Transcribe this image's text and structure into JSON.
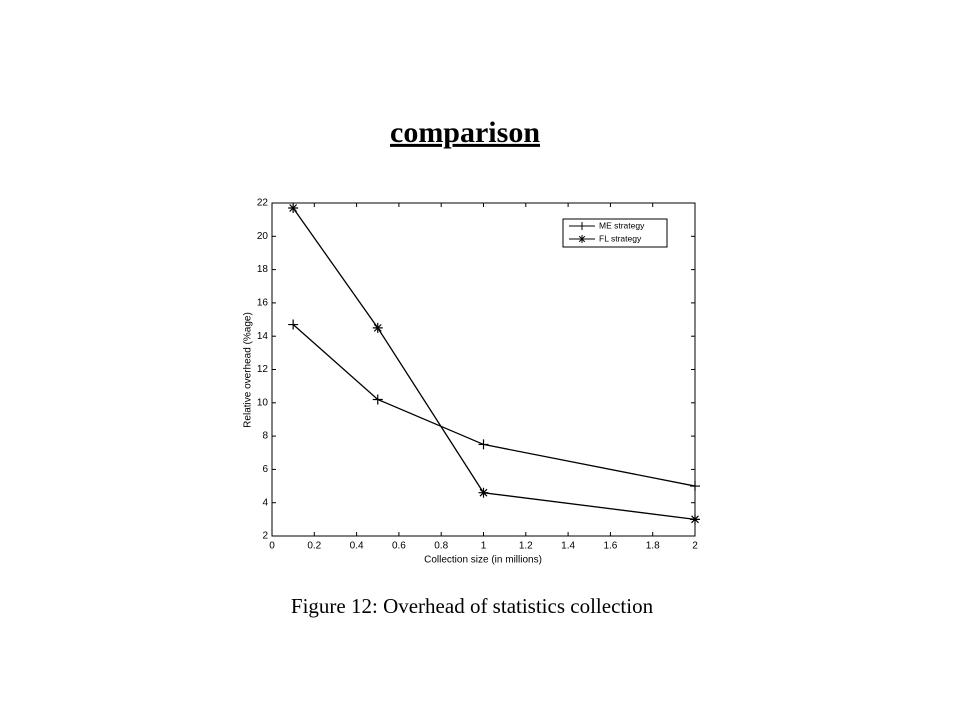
{
  "slide": {
    "title": "comparison"
  },
  "chart_data": {
    "type": "line",
    "caption": "Figure 12: Overhead of statistics collection",
    "x_label": "Collection size (in millions)",
    "y_label": "Relative overhead (%age)",
    "x": [
      0.1,
      0.5,
      1,
      2
    ],
    "series": [
      {
        "name": "ME strategy",
        "color": "#000000",
        "marker": "plus",
        "values": [
          14.7,
          10.2,
          7.5,
          5.0
        ]
      },
      {
        "name": "FL strategy",
        "color": "#000000",
        "marker": "star",
        "values": [
          21.7,
          14.5,
          4.6,
          3.0
        ]
      }
    ],
    "xlim": [
      0,
      2
    ],
    "xticks": [
      0,
      0.2,
      0.4,
      0.6,
      0.8,
      1,
      1.2,
      1.4,
      1.6,
      1.8,
      2
    ],
    "ylim": [
      2,
      22
    ],
    "yticks": [
      2,
      4,
      6,
      8,
      10,
      12,
      14,
      16,
      18,
      20,
      22
    ],
    "grid": false,
    "legend": "upper right"
  }
}
